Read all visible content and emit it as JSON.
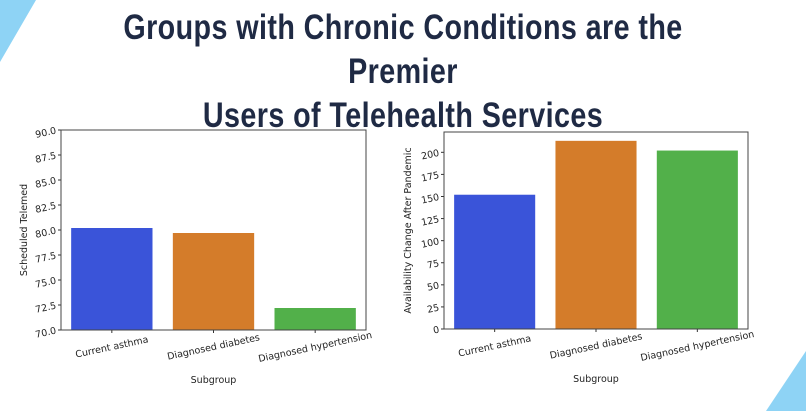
{
  "title_lines": [
    "Groups with Chronic Conditions are the Premier",
    "Users of Telehealth Services"
  ],
  "decoration_color": "#8ed3f5",
  "chart_data": [
    {
      "type": "bar",
      "categories": [
        "Current asthma",
        "Diagnosed diabetes",
        "Diagnosed hypertension"
      ],
      "values": [
        80.2,
        79.7,
        72.2
      ],
      "colors": [
        "#3a54d9",
        "#d47c2a",
        "#52b04a"
      ],
      "xlabel": "Subgroup",
      "ylabel": "Scheduled Telemed",
      "ylim": [
        70,
        90
      ],
      "yticks": [
        "70.0",
        "72.5",
        "75.0",
        "77.5",
        "80.0",
        "82.5",
        "85.0",
        "87.5",
        "90.0"
      ],
      "grid": false
    },
    {
      "type": "bar",
      "categories": [
        "Current asthma",
        "Diagnosed diabetes",
        "Diagnosed hypertension"
      ],
      "values": [
        152,
        213,
        202
      ],
      "colors": [
        "#3a54d9",
        "#d47c2a",
        "#52b04a"
      ],
      "xlabel": "Subgroup",
      "ylabel": "Availability Change After Pandemic",
      "ylim": [
        0,
        223
      ],
      "yticks": [
        "0",
        "25",
        "50",
        "75",
        "100",
        "125",
        "150",
        "175",
        "200"
      ],
      "grid": false
    }
  ]
}
